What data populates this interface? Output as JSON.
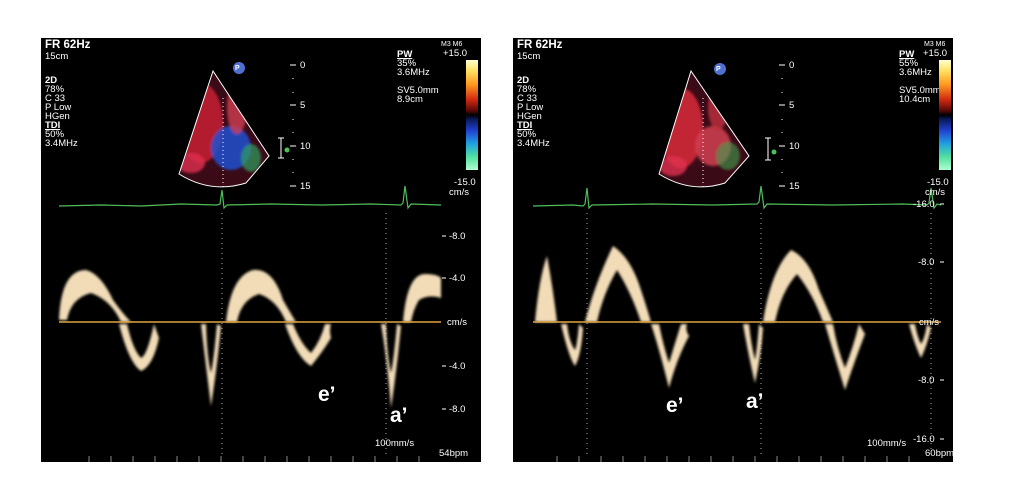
{
  "panels": [
    {
      "header": {
        "frame_rate": "FR 62Hz",
        "depth": "15cm",
        "settings_2d": [
          "2D",
          "78%",
          "C 33",
          "P Low",
          "HGen"
        ],
        "tdi_label": "TDI",
        "tdi_settings": [
          "50%",
          "3.4MHz"
        ]
      },
      "probe_badge": "P",
      "depth_scale": [
        "0",
        "5",
        "10",
        "15"
      ],
      "pw": {
        "label": "PW",
        "gain": "35%",
        "freq": "3.6MHz",
        "sample_volume": "SV5.0mm",
        "depth": "8.9cm"
      },
      "colorbar": {
        "mode": "M3 M6",
        "top": "+15.0",
        "bottom": "-15.0",
        "unit": "cm/s"
      },
      "velocity_scale": [
        "-8.0",
        "-4.0",
        "cm/s",
        "-4.0",
        "-8.0"
      ],
      "annotations": [
        "e’",
        "a’"
      ],
      "sweep_speed": "100mm/s",
      "heart_rate": "54bpm"
    },
    {
      "header": {
        "frame_rate": "FR 62Hz",
        "depth": "15cm",
        "settings_2d": [
          "2D",
          "78%",
          "C 33",
          "P Low",
          "HGen"
        ],
        "tdi_label": "TDI",
        "tdi_settings": [
          "50%",
          "3.4MHz"
        ]
      },
      "probe_badge": "P",
      "depth_scale": [
        "0",
        "5",
        "10",
        "15"
      ],
      "pw": {
        "label": "PW",
        "gain": "55%",
        "freq": "3.6MHz",
        "sample_volume": "SV5.0mm",
        "depth": "10.4cm"
      },
      "colorbar": {
        "mode": "M3 M6",
        "top": "+15.0",
        "bottom": "-15.0",
        "unit": "cm/s"
      },
      "velocity_scale": [
        "-16.0",
        "-8.0",
        "cm/s",
        "-8.0",
        "-16.0"
      ],
      "annotations": [
        "e’",
        "a’"
      ],
      "sweep_speed": "100mm/s",
      "heart_rate": "60bpm"
    }
  ],
  "colors": {
    "ecg": "#4fbf5a",
    "baseline": "#e0a640",
    "doppler": "#f2dcb8",
    "text": "#ffffff"
  }
}
